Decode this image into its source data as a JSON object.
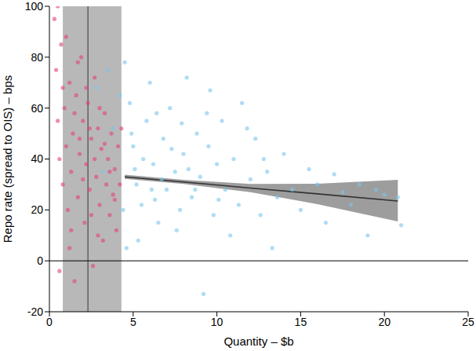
{
  "chart_data": {
    "type": "scatter",
    "xlabel": "Quantity – $b",
    "ylabel": "Repo rate (spread to OIS) – bps",
    "xlim": [
      0,
      25
    ],
    "ylim": [
      -20,
      100
    ],
    "xticks": [
      0,
      5,
      10,
      15,
      20,
      25
    ],
    "yticks": [
      -20,
      0,
      20,
      40,
      60,
      80,
      100
    ],
    "shaded_x_range": [
      0.8,
      4.3
    ],
    "vlines": [
      2.3
    ],
    "hlines": [
      0
    ],
    "series": [
      {
        "type": "scatter",
        "color": "#7cc4ec",
        "x": [
          4.5,
          4.8,
          5.0,
          5.2,
          5.5,
          5.8,
          6.0,
          6.2,
          6.5,
          6.8,
          7.0,
          7.2,
          7.5,
          7.8,
          8.0,
          8.2,
          8.5,
          8.8,
          9.0,
          9.2,
          9.5,
          9.8,
          10.0,
          10.3,
          10.5,
          10.8,
          11.0,
          11.3,
          11.5,
          12.0,
          12.3,
          12.6,
          13.0,
          13.3,
          13.6,
          14.0,
          14.5,
          15.0,
          15.5,
          16.0,
          16.5,
          17.0,
          17.5,
          18.0,
          18.5,
          19.0,
          19.5,
          20.0,
          20.8,
          4.2,
          4.4,
          4.6,
          5.3,
          5.6,
          6.1,
          6.4,
          6.7,
          7.3,
          7.6,
          8.3,
          8.7,
          9.4,
          10.1,
          11.8,
          3.5,
          3.8,
          2.8,
          3.2,
          12.8,
          9.6,
          7.9,
          5.1,
          6.3,
          4.9,
          21.0
        ],
        "y": [
          78,
          62,
          45,
          30,
          22,
          55,
          70,
          38,
          15,
          48,
          28,
          60,
          35,
          20,
          42,
          72,
          25,
          50,
          33,
          -13,
          45,
          18,
          38,
          55,
          28,
          10,
          40,
          22,
          62,
          32,
          48,
          18,
          35,
          5,
          25,
          42,
          28,
          20,
          36,
          30,
          15,
          34,
          27,
          22,
          30,
          10,
          28,
          26,
          25,
          65,
          20,
          5,
          8,
          40,
          28,
          58,
          32,
          44,
          12,
          36,
          28,
          58,
          24,
          52,
          75,
          52,
          68,
          35,
          40,
          67,
          54,
          36,
          24,
          50,
          14
        ]
      },
      {
        "type": "scatter",
        "color": "#e4407f",
        "x": [
          0.3,
          0.4,
          0.5,
          0.6,
          0.7,
          0.8,
          0.9,
          1.0,
          1.1,
          1.2,
          1.3,
          1.4,
          1.5,
          1.6,
          1.7,
          1.8,
          1.9,
          2.0,
          2.1,
          2.2,
          2.3,
          2.4,
          2.5,
          2.6,
          2.7,
          2.8,
          2.9,
          3.0,
          3.1,
          3.2,
          3.3,
          3.4,
          3.5,
          3.6,
          3.7,
          3.8,
          3.9,
          4.0,
          4.1,
          4.2,
          4.3,
          0.5,
          0.8,
          1.0,
          1.2,
          1.5,
          1.7,
          2.0,
          2.2,
          2.5,
          2.7,
          3.0,
          3.3,
          3.6,
          3.9,
          1.3,
          0.6,
          2.9,
          1.8,
          2.4
        ],
        "y": [
          95,
          75,
          55,
          40,
          85,
          30,
          60,
          45,
          20,
          70,
          35,
          50,
          -8,
          65,
          25,
          42,
          80,
          55,
          15,
          38,
          62,
          28,
          48,
          -2,
          72,
          33,
          52,
          22,
          44,
          8,
          58,
          30,
          40,
          18,
          50,
          26,
          36,
          12,
          45,
          30,
          52,
          100,
          68,
          88,
          5,
          58,
          78,
          32,
          68,
          18,
          40,
          60,
          46,
          35,
          24,
          12,
          -4,
          10,
          48,
          52
        ]
      },
      {
        "type": "line",
        "color": "#333333",
        "x": [
          4.5,
          8,
          12,
          16,
          20.8
        ],
        "y": [
          33.0,
          31.0,
          28.6,
          26.3,
          23.5
        ],
        "lower": [
          32.2,
          30.2,
          27.0,
          22.3,
          15.5
        ],
        "upper": [
          33.8,
          31.8,
          30.2,
          30.3,
          31.8
        ]
      }
    ]
  }
}
